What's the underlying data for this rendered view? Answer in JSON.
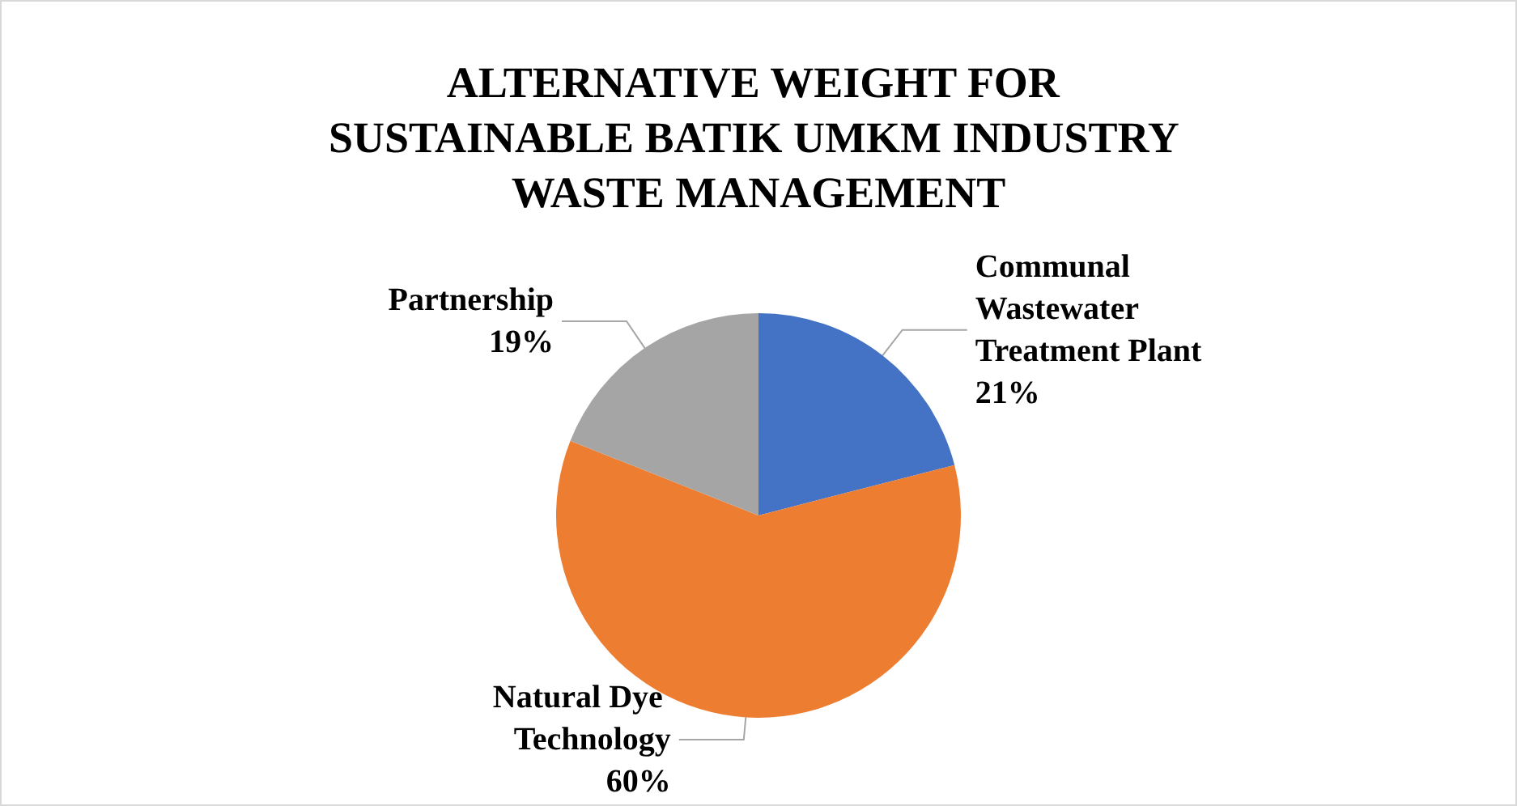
{
  "chart_data": {
    "type": "pie",
    "title": "ALTERNATIVE WEIGHT FOR SUSTAINABLE BATIK UMKM INDUSTRY WASTE MANAGEMENT",
    "categories": [
      "Communal Wastewater Treatment Plant",
      "Natural Dye Technology",
      "Partnership"
    ],
    "values": [
      21,
      60,
      19
    ],
    "colors": [
      "#4472c4",
      "#ed7d31",
      "#a5a5a5"
    ],
    "value_labels": [
      "21%",
      "60%",
      "19%"
    ],
    "legend": false
  }
}
